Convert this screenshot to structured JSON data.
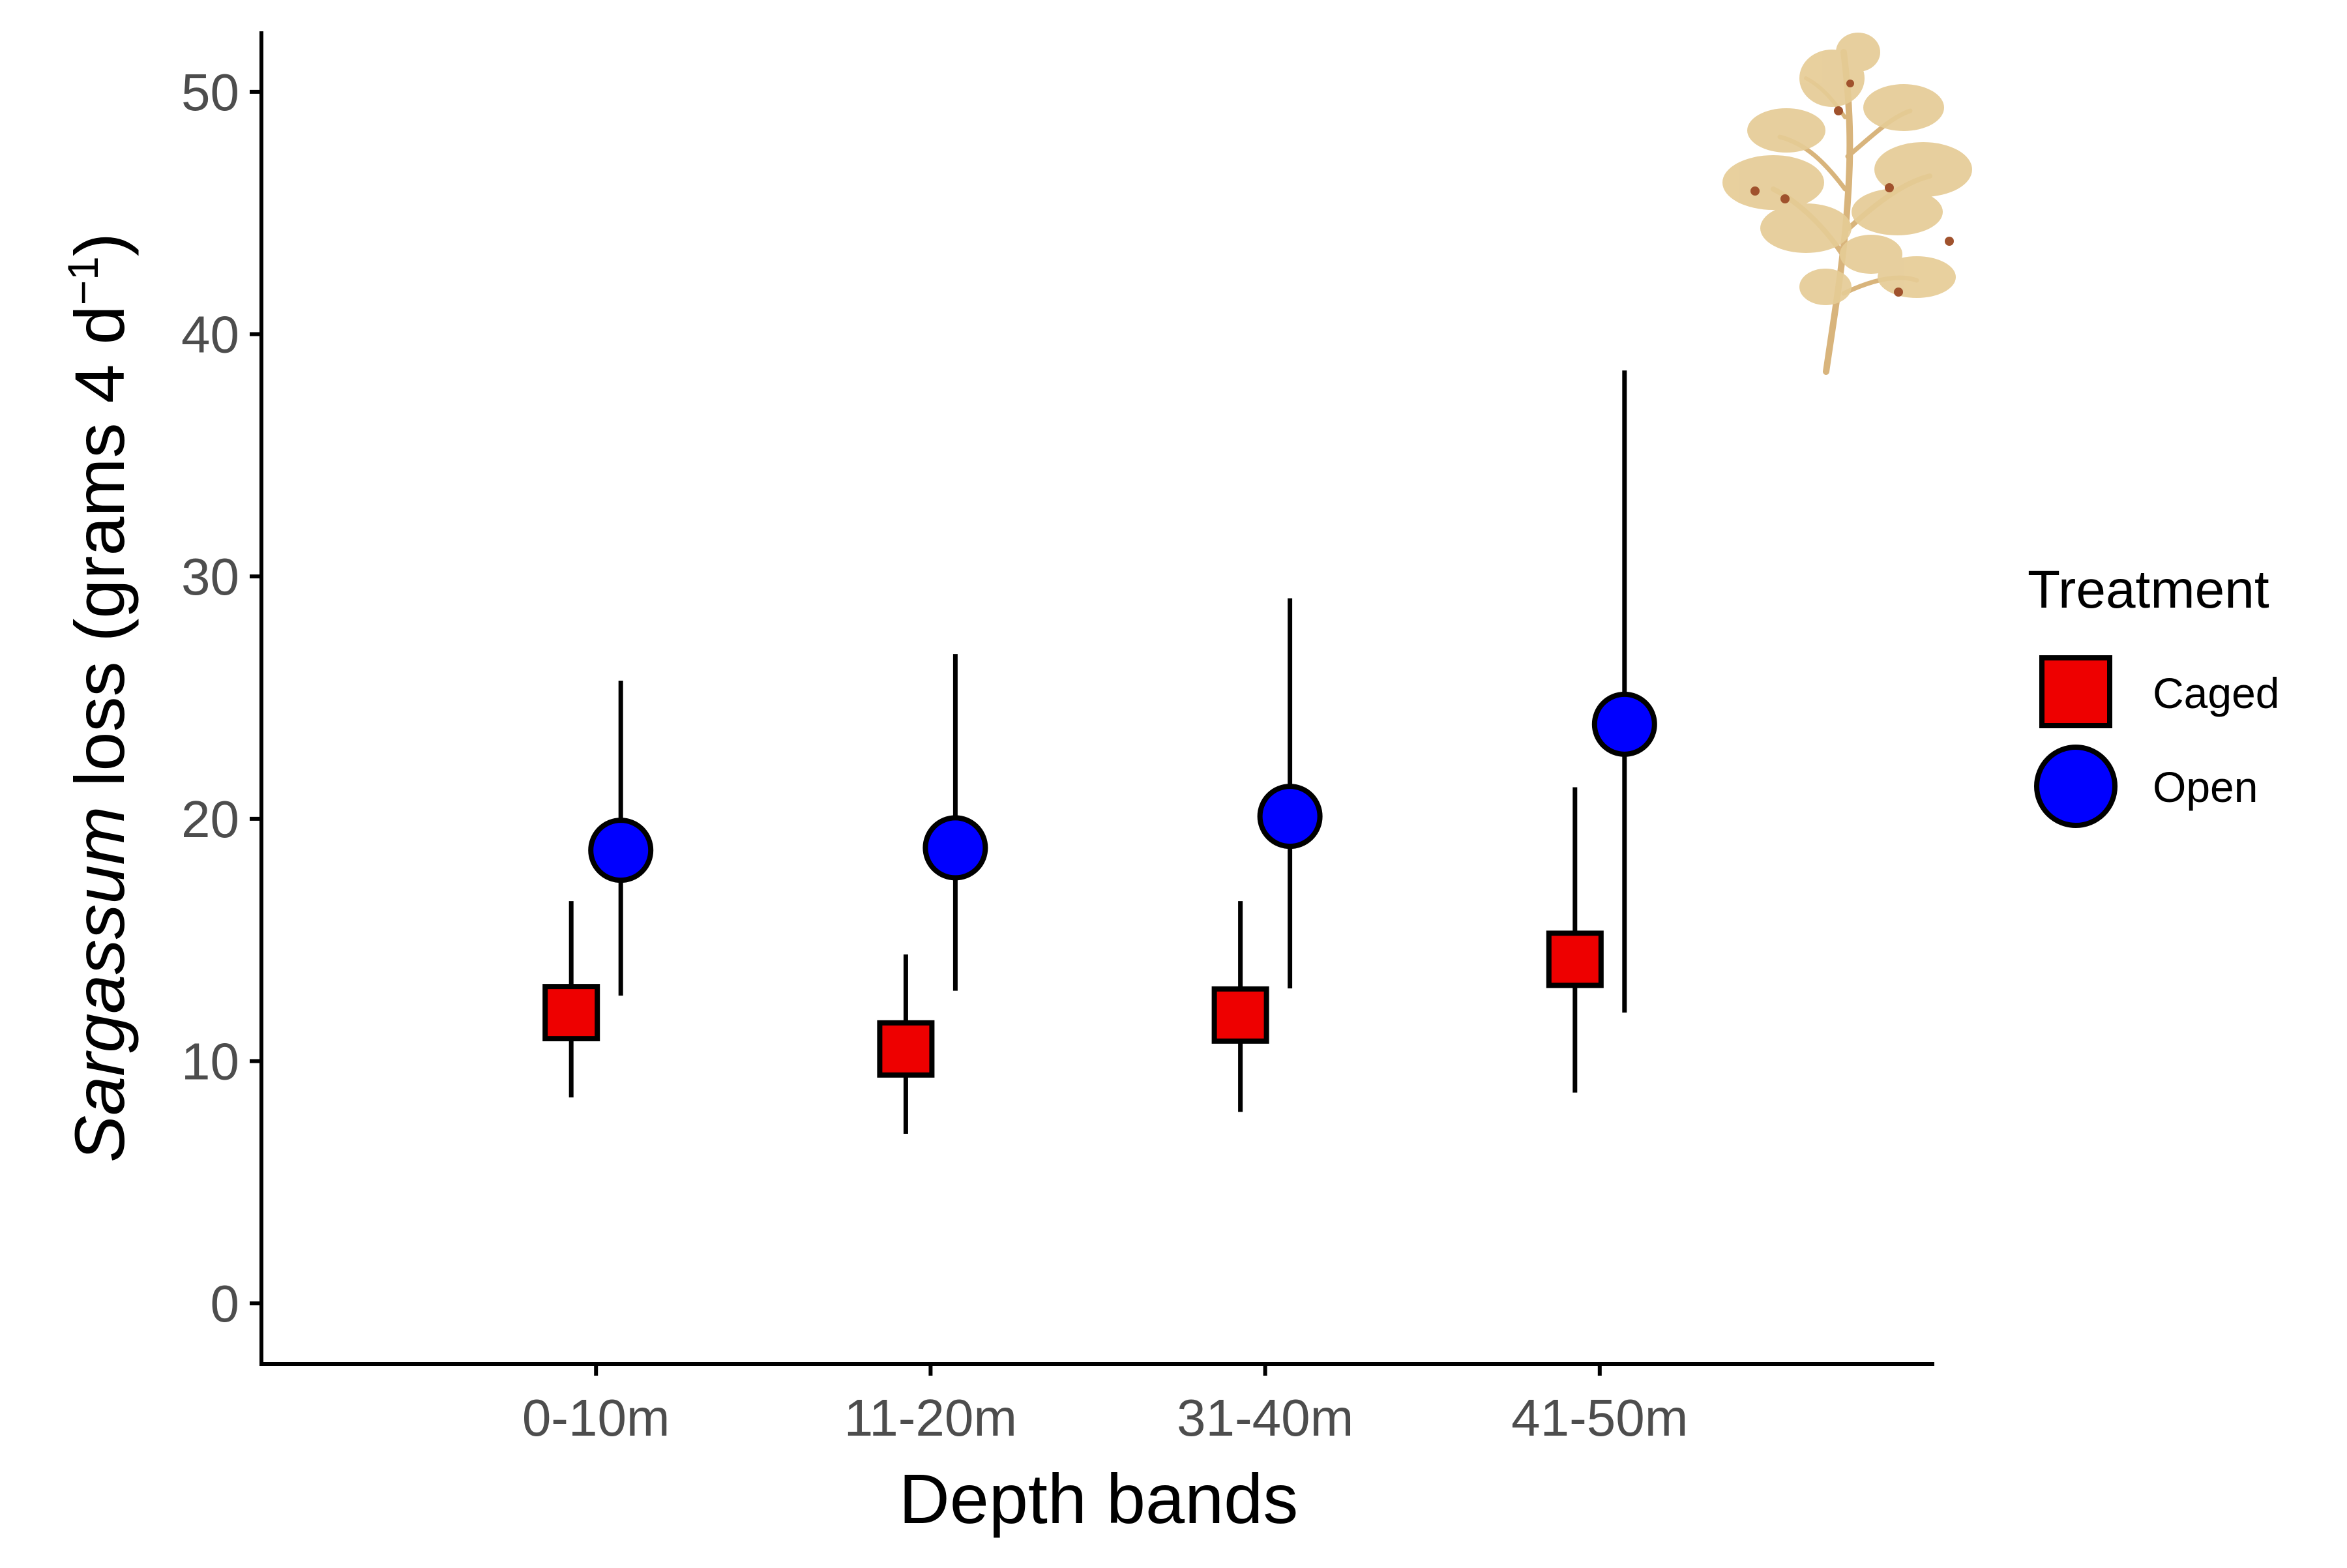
{
  "chart_data": {
    "type": "scatter",
    "xlabel": "Depth bands",
    "ylabel": {
      "italic": "Sargassum",
      "plain": " loss (grams 4 d",
      "sup": "−1",
      "close": ")"
    },
    "categories": [
      "0-10m",
      "11-20m",
      "31-40m",
      "41-50m"
    ],
    "ylim": [
      -2.5,
      52.5
    ],
    "yticks": [
      0,
      10,
      20,
      30,
      40,
      50
    ],
    "grid": false,
    "legend": {
      "title": "Treatment",
      "position": "right"
    },
    "series": [
      {
        "name": "Caged",
        "marker": "square",
        "color": "#ee0000",
        "values": [
          12.0,
          10.5,
          11.9,
          14.2
        ],
        "lower": [
          8.5,
          7.0,
          7.9,
          8.7
        ],
        "upper": [
          16.6,
          14.4,
          16.6,
          21.3
        ]
      },
      {
        "name": "Open",
        "marker": "circle",
        "color": "#0000ff",
        "values": [
          18.7,
          18.8,
          20.1,
          23.9
        ],
        "lower": [
          12.7,
          12.9,
          13.0,
          12.0
        ],
        "upper": [
          25.7,
          26.8,
          29.1,
          38.5
        ]
      }
    ],
    "inset_image": "sargassum-seaweed-illustration",
    "colors": {
      "axis": "#000000",
      "tick_label": "#4d4d4d",
      "seaweed": "#dcc084"
    }
  }
}
